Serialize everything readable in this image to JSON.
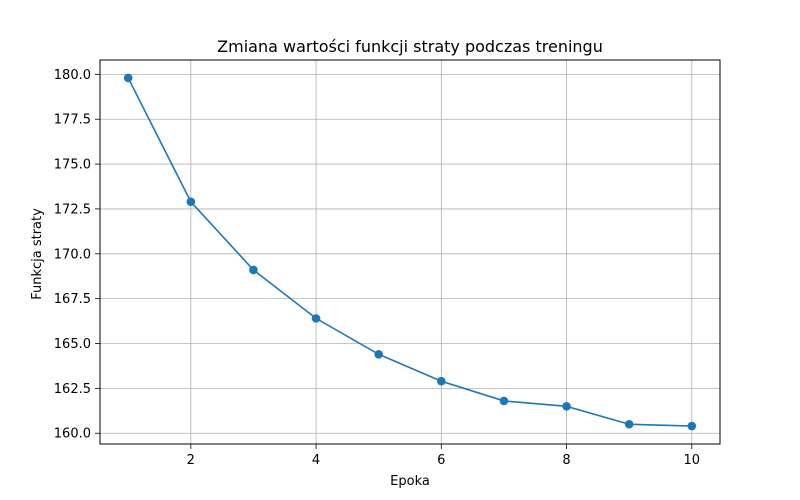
{
  "chart_data": {
    "type": "line",
    "title": "Zmiana wartości funkcji straty podczas treningu",
    "xlabel": "Epoka",
    "ylabel": "Funkcja straty",
    "x": [
      1,
      2,
      3,
      4,
      5,
      6,
      7,
      8,
      9,
      10
    ],
    "series": [
      {
        "name": "",
        "values": [
          179.8,
          172.9,
          169.1,
          166.4,
          164.4,
          162.9,
          161.8,
          161.5,
          160.5,
          160.4
        ],
        "color": "#1f77b4",
        "marker": "circle"
      }
    ],
    "xlim": [
      0.55,
      10.45
    ],
    "ylim": [
      159.4,
      180.8
    ],
    "xticks": [
      2,
      4,
      6,
      8,
      10
    ],
    "xtick_labels": [
      "2",
      "4",
      "6",
      "8",
      "10"
    ],
    "yticks": [
      160.0,
      162.5,
      165.0,
      167.5,
      170.0,
      172.5,
      175.0,
      177.5,
      180.0
    ],
    "ytick_labels": [
      "160.0",
      "162.5",
      "165.0",
      "167.5",
      "170.0",
      "172.5",
      "175.0",
      "177.5",
      "180.0"
    ],
    "grid": true
  }
}
